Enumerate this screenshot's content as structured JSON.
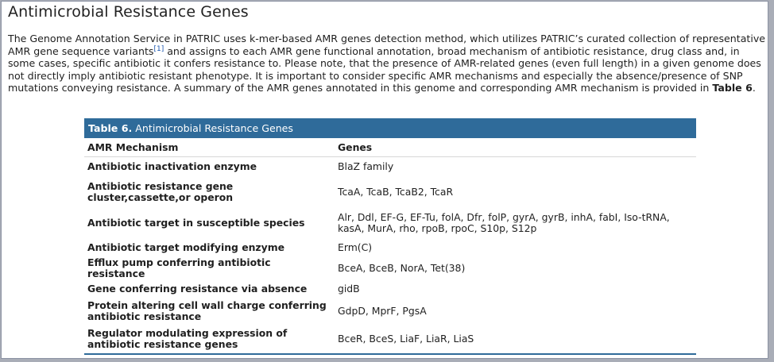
{
  "section": {
    "title": "Antimicrobial Resistance Genes",
    "intro_part1": "The Genome Annotation Service in PATRIC uses k-mer-based AMR genes detection method, which utilizes PATRIC’s curated collection of representative AMR gene sequence variants",
    "citation": "[1]",
    "intro_part2": " and assigns to each AMR gene functional annotation, broad mechanism of antibiotic resistance, drug class and, in some cases, specific antibiotic it confers resistance to. Please note, that the presence of AMR-related genes (even full length) in a given genome does not directly imply antibiotic resistant phenotype. It is important to consider specific AMR mechanisms and especially the absence/presence of SNP mutations conveying resistance. A summary of the AMR genes annotated in this genome and corresponding AMR mechanism is provided in ",
    "intro_ref": "Table 6",
    "intro_end": "."
  },
  "table": {
    "caption_label": "Table 6.",
    "caption_text": " Antimicrobial Resistance Genes",
    "headers": [
      "AMR Mechanism",
      "Genes"
    ],
    "rows": [
      {
        "mechanism": "Antibiotic inactivation enzyme",
        "genes": "BlaZ family"
      },
      {
        "mechanism": "Antibiotic resistance gene cluster,cassette,or operon",
        "genes": "TcaA, TcaB, TcaB2, TcaR"
      },
      {
        "mechanism": "Antibiotic target in susceptible species",
        "genes": "Alr, Ddl, EF-G, EF-Tu, folA, Dfr, folP, gyrA, gyrB, inhA, fabI, Iso-tRNA, kasA, MurA, rho, rpoB, rpoC, S10p, S12p"
      },
      {
        "mechanism": "Antibiotic target modifying enzyme",
        "genes": "Erm(C)"
      },
      {
        "mechanism": "Efflux pump conferring antibiotic resistance",
        "genes": "BceA, BceB, NorA, Tet(38)"
      },
      {
        "mechanism": "Gene conferring resistance via absence",
        "genes": "gidB"
      },
      {
        "mechanism": "Protein altering cell wall charge conferring antibiotic resistance",
        "genes": "GdpD, MprF, PgsA"
      },
      {
        "mechanism": "Regulator modulating expression of antibiotic resistance genes",
        "genes": "BceR, BceS, LiaF, LiaR, LiaS"
      }
    ]
  },
  "colors": {
    "table_accent": "#2f6b9a",
    "citation_link": "#1a56b0",
    "page_background": "#ffffff",
    "outer_frame": "#a9adb7"
  }
}
